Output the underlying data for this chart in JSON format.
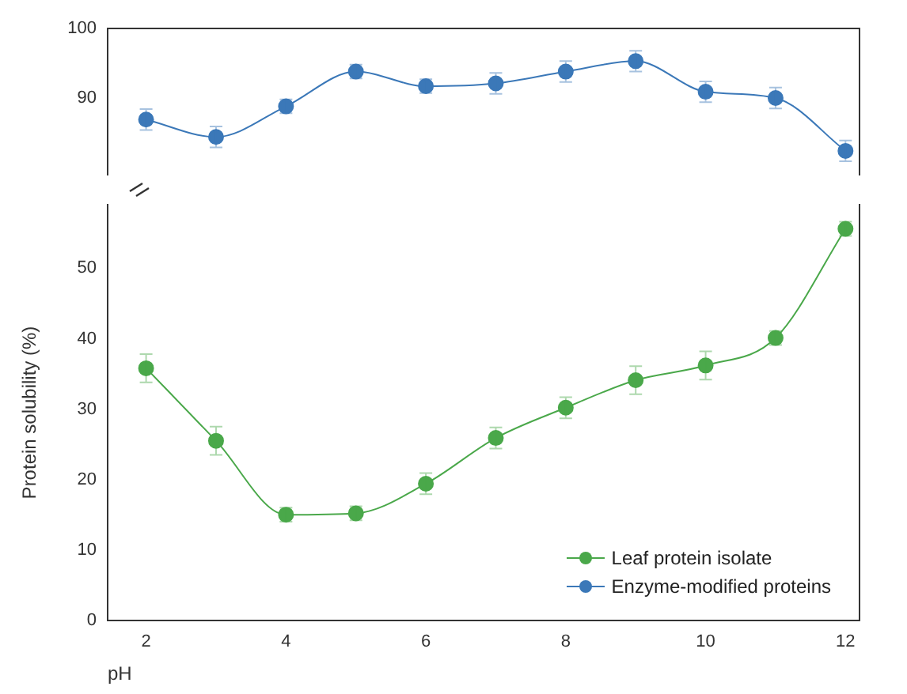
{
  "chart_data": [
    {
      "type": "line",
      "x": [
        2,
        3,
        4,
        5,
        6,
        7,
        8,
        9,
        10,
        11,
        12
      ],
      "xlim": [
        1.45,
        12.2
      ],
      "ylim": [
        79,
        100
      ],
      "yticks": [
        90,
        100
      ],
      "tick_labels": "y",
      "marker": "circle",
      "legend": false,
      "series": [
        {
          "name": "Enzyme-modified proteins",
          "color": "#3b78b8",
          "values": [
            86.9,
            84.4,
            88.8,
            93.8,
            91.7,
            92.1,
            93.8,
            95.3,
            90.9,
            90.0,
            82.4
          ],
          "errors": [
            1.5,
            1.5,
            1,
            1,
            1,
            1.5,
            1.5,
            1.5,
            1.5,
            1.5,
            1.5
          ]
        }
      ]
    },
    {
      "type": "line",
      "x": [
        2,
        3,
        4,
        5,
        6,
        7,
        8,
        9,
        10,
        11,
        12
      ],
      "xlim": [
        1.45,
        12.2
      ],
      "xticks": [
        2,
        4,
        6,
        8,
        10,
        12
      ],
      "ylim": [
        0,
        59
      ],
      "yticks": [
        0,
        10,
        20,
        30,
        40,
        50
      ],
      "xlabel": "pH",
      "ylabel": "Protein solubility (%)",
      "marker": "circle",
      "legend": "bottom right",
      "series": [
        {
          "name": "Leaf protein isolate",
          "color": "#4aa84a",
          "values": [
            35.8,
            25.5,
            15.0,
            15.2,
            19.4,
            25.9,
            30.2,
            34.1,
            36.2,
            40.1,
            55.6
          ],
          "errors": [
            2,
            2,
            1,
            1,
            1.5,
            1.5,
            1.5,
            2,
            2,
            1,
            1
          ]
        }
      ]
    }
  ]
}
